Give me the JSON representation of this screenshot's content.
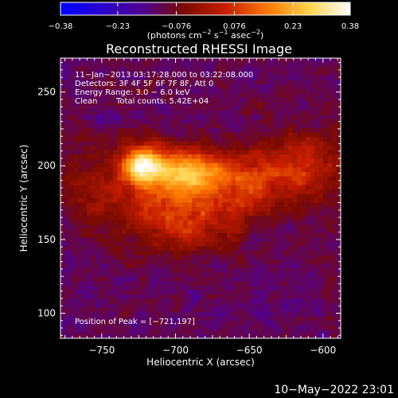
{
  "chart_data": {
    "type": "heatmap",
    "title": "Reconstructed RHESSI Image",
    "xlabel": "Heliocentric X (arcsec)",
    "ylabel": "Heliocentric Y (arcsec)",
    "xlim": [
      -778,
      -588
    ],
    "ylim": [
      83,
      273
    ],
    "x_ticks": [
      -750,
      -700,
      -650,
      -600
    ],
    "x_tick_labels": [
      "−750",
      "−700",
      "−650",
      "−600"
    ],
    "y_ticks": [
      100,
      150,
      200,
      250
    ],
    "y_tick_labels": [
      "100",
      "150",
      "200",
      "250"
    ],
    "colorbar": {
      "range": [
        -0.38,
        0.38
      ],
      "tick_values": [
        -0.38,
        -0.23,
        -0.076,
        0.076,
        0.23,
        0.38
      ],
      "tick_labels": [
        "−0.38",
        "−0.23",
        "−0.076",
        "0.076",
        "0.23",
        "0.38"
      ],
      "unit_label_parts": [
        "(photons cm",
        "−2",
        " s",
        "−1",
        " asec",
        "−2",
        ")"
      ],
      "colors": [
        "#0000ff",
        "#2a00cc",
        "#50008f",
        "#7a0a00",
        "#c81e00",
        "#ff7800",
        "#ffd24a",
        "#ffffff"
      ]
    },
    "annotations": [
      "11−Jan−2013 03:17:28.000 to 03:22:08.000",
      "Detectors: 3F 4F 5F 6F 7F 8F, Att 0",
      "Energy Range: 3.0 − 6.0 keV",
      "Clean",
      "Total counts: 5.42E+04",
      "Position of Peak = [−721,197]"
    ],
    "peak_position": [
      -721,
      197
    ],
    "sources": [
      {
        "x": -722,
        "y": 201,
        "peak": 0.38,
        "sx": 10,
        "sy": 9
      },
      {
        "x": -690,
        "y": 196,
        "peak": 0.28,
        "sx": 16,
        "sy": 10
      },
      {
        "x": -705,
        "y": 181,
        "peak": 0.17,
        "sx": 35,
        "sy": 18
      },
      {
        "x": -690,
        "y": 158,
        "peak": 0.12,
        "sx": 22,
        "sy": 12
      },
      {
        "x": -637,
        "y": 196,
        "peak": 0.14,
        "sx": 18,
        "sy": 15
      },
      {
        "x": -607,
        "y": 200,
        "peak": 0.13,
        "sx": 16,
        "sy": 18
      },
      {
        "x": -655,
        "y": 183,
        "peak": 0.09,
        "sx": 14,
        "sy": 12
      },
      {
        "x": -758,
        "y": 195,
        "peak": 0.06,
        "sx": 12,
        "sy": 20
      }
    ],
    "background_level": -0.12
  },
  "footer": {
    "timestamp": "10−May−2022 23:01"
  }
}
